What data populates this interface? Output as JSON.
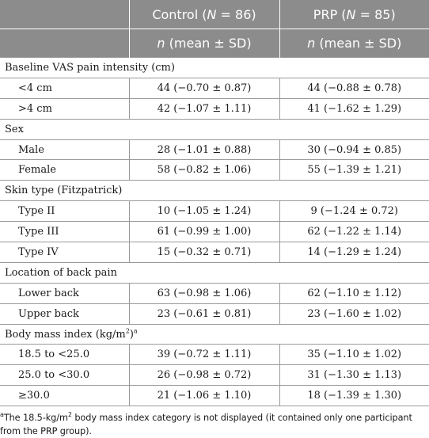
{
  "header": {
    "control_label": "Control",
    "control_n": "(N = 86)",
    "prp_label": "PRP",
    "prp_n": "(N = 85)",
    "sub_n": "n",
    "sub_stat": "(mean ± SD)"
  },
  "groups": [
    {
      "label": "Baseline VAS pain intensity (cm)",
      "rows": [
        {
          "label": "<4 cm",
          "control": "44 (−0.70 ± 0.87)",
          "prp": "44 (−0.88 ± 0.78)"
        },
        {
          "label": ">4 cm",
          "control": "42 (−1.07 ± 1.11)",
          "prp": "41 (−1.62 ± 1.29)"
        }
      ]
    },
    {
      "label": "Sex",
      "rows": [
        {
          "label": "Male",
          "control": "28 (−1.01 ± 0.88)",
          "prp": "30 (−0.94 ± 0.85)"
        },
        {
          "label": "Female",
          "control": "58 (−0.82 ± 1.06)",
          "prp": "55 (−1.39 ± 1.21)"
        }
      ]
    },
    {
      "label": "Skin type (Fitzpatrick)",
      "rows": [
        {
          "label": "Type II",
          "control": "10 (−1.05 ± 1.24)",
          "prp": "9 (−1.24 ± 0.72)"
        },
        {
          "label": "Type III",
          "control": "61 (−0.99 ± 1.00)",
          "prp": "62 (−1.22 ± 1.14)"
        },
        {
          "label": "Type IV",
          "control": "15 (−0.32 ± 0.71)",
          "prp": "14 (−1.29 ± 1.24)"
        }
      ]
    },
    {
      "label": "Location of back pain",
      "rows": [
        {
          "label": "Lower back",
          "control": "63 (−0.98 ± 1.06)",
          "prp": "62 (−1.10 ± 1.12)"
        },
        {
          "label": "Upper back",
          "control": "23 (−0.61 ± 0.81)",
          "prp": "23 (−1.60 ± 1.02)"
        }
      ]
    },
    {
      "label": "Body mass index (kg/m",
      "label_sup": "2",
      "label_close": ")",
      "label_note": "a",
      "rows": [
        {
          "label": "18.5 to <25.0",
          "control": "39 (−0.72 ± 1.11)",
          "prp": "35 (−1.10 ± 1.02)"
        },
        {
          "label": "25.0 to <30.0",
          "control": "26 (−0.98 ± 0.72)",
          "prp": "31 (−1.30 ± 1.13)"
        },
        {
          "label": "≥30.0",
          "control": "21 (−1.06 ± 1.10)",
          "prp": "18 (−1.39 ± 1.30)"
        }
      ]
    }
  ],
  "footnote": {
    "mark": "a",
    "text_before": "The 18.5-kg/m",
    "sup": "2",
    "text_after": " body mass index category is not displayed (it contained only one participant from the PRP group)."
  }
}
